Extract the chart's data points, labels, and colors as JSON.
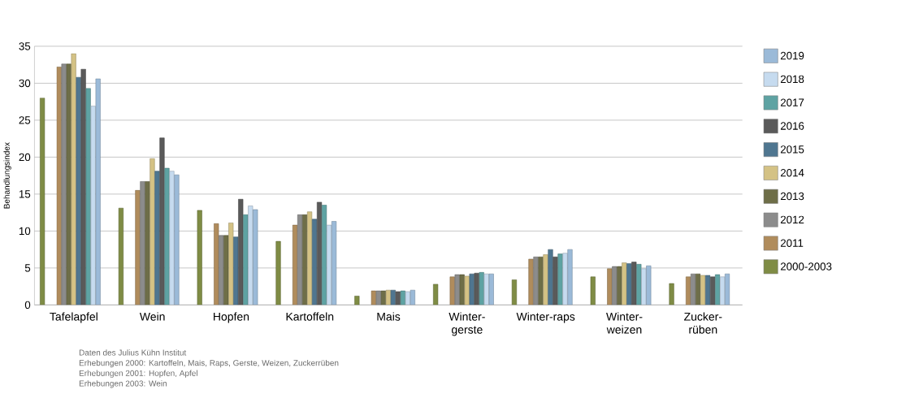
{
  "chart_data": {
    "type": "bar",
    "ylabel": "Behandlungsindex",
    "categories": [
      "Tafelapfel",
      "Wein",
      "Hopfen",
      "Kartoffeln",
      "Mais",
      "Winter-gerste",
      "Winter-raps",
      "Winter-weizen",
      "Zucker-rüben"
    ],
    "series": [
      {
        "name": "2000-2003",
        "color": "#7f8c45",
        "values": [
          28,
          13.1,
          12.8,
          8.6,
          1.2,
          2.8,
          3.4,
          3.8,
          2.9
        ]
      },
      {
        "name": "2011",
        "color": "#b08c5c",
        "values": [
          32.2,
          15.5,
          11,
          10.8,
          1.9,
          3.8,
          6.2,
          4.9,
          3.8
        ]
      },
      {
        "name": "2012",
        "color": "#8c8c8c",
        "values": [
          32.6,
          16.7,
          9.4,
          12.2,
          1.9,
          4.1,
          6.5,
          5.2,
          4.2
        ]
      },
      {
        "name": "2013",
        "color": "#6e6e48",
        "values": [
          32.6,
          16.7,
          9.4,
          12.2,
          1.9,
          4.1,
          6.5,
          5.2,
          4.2
        ]
      },
      {
        "name": "2014",
        "color": "#d4c285",
        "values": [
          34,
          19.8,
          11.1,
          12.6,
          2.0,
          3.9,
          6.8,
          5.7,
          4.0
        ]
      },
      {
        "name": "2015",
        "color": "#4f7690",
        "values": [
          30.8,
          18.1,
          9.2,
          11.6,
          2.0,
          4.2,
          7.5,
          5.6,
          4.0
        ]
      },
      {
        "name": "2016",
        "color": "#5a5a5a",
        "values": [
          31.9,
          22.6,
          14.3,
          13.9,
          1.8,
          4.3,
          6.5,
          5.8,
          3.8
        ]
      },
      {
        "name": "2017",
        "color": "#5ea3a3",
        "values": [
          29.3,
          18.5,
          12.2,
          13.5,
          1.9,
          4.4,
          6.9,
          5.5,
          4.1
        ]
      },
      {
        "name": "2018",
        "color": "#c6dbef",
        "values": [
          26.9,
          18.1,
          13.4,
          10.8,
          1.8,
          4.2,
          7.0,
          4.9,
          3.8
        ]
      },
      {
        "name": "2019",
        "color": "#9bbad8",
        "values": [
          30.6,
          17.6,
          12.9,
          11.3,
          2.0,
          4.2,
          7.5,
          5.3,
          4.2
        ]
      }
    ],
    "ylim": [
      0,
      35
    ],
    "yticks": [
      0,
      5,
      10,
      15,
      20,
      25,
      30,
      35
    ],
    "grid": "y",
    "legend": "right",
    "annotations": [
      "Daten des Julius Kühn Institut",
      "Erhebungen 2000: Kartoffeln, Mais, Raps, Gerste, Weizen, Zuckerrüben",
      "Erhebungen 2001: Hopfen, Apfel",
      "Erhebungen 2003: Wein"
    ]
  }
}
